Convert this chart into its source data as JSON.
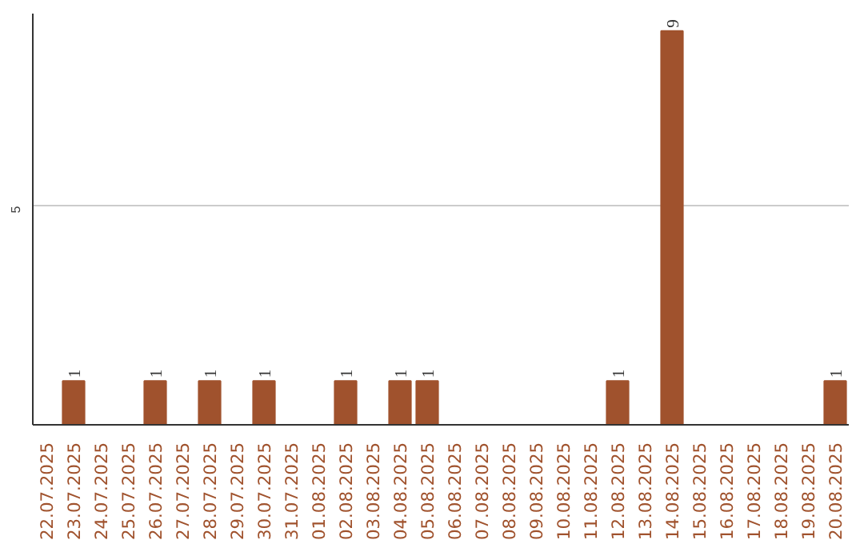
{
  "chart_data": {
    "type": "bar",
    "categories": [
      "22.07.2025",
      "23.07.2025",
      "24.07.2025",
      "25.07.2025",
      "26.07.2025",
      "27.07.2025",
      "28.07.2025",
      "29.07.2025",
      "30.07.2025",
      "31.07.2025",
      "01.08.2025",
      "02.08.2025",
      "03.08.2025",
      "04.08.2025",
      "05.08.2025",
      "06.08.2025",
      "07.08.2025",
      "08.08.2025",
      "09.08.2025",
      "10.08.2025",
      "11.08.2025",
      "12.08.2025",
      "13.08.2025",
      "14.08.2025",
      "15.08.2025",
      "16.08.2025",
      "17.08.2025",
      "18.08.2025",
      "19.08.2025",
      "20.08.2025"
    ],
    "values": [
      0,
      1,
      0,
      0,
      1,
      0,
      1,
      0,
      1,
      0,
      0,
      1,
      0,
      1,
      1,
      0,
      0,
      0,
      0,
      0,
      0,
      1,
      0,
      9,
      0,
      0,
      0,
      0,
      0,
      1
    ],
    "value_labels": [
      null,
      "1",
      null,
      null,
      "1",
      null,
      "1",
      null,
      "1",
      null,
      null,
      "1",
      null,
      "1",
      "1",
      null,
      null,
      null,
      null,
      null,
      null,
      "1",
      null,
      "9",
      null,
      null,
      null,
      null,
      null,
      "1"
    ],
    "color": "#a0522d",
    "ylim": [
      0,
      9.4
    ],
    "yticks": [
      5
    ],
    "grid": "y"
  }
}
